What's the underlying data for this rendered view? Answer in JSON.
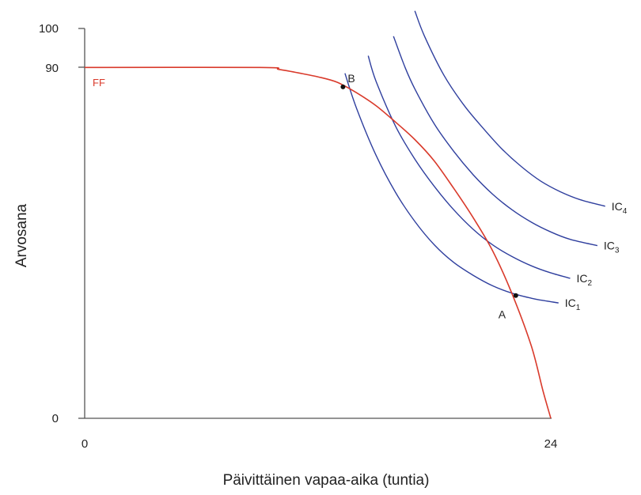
{
  "chart_data": {
    "type": "line",
    "xlabel": "Päivittäinen vapaa-aika (tuntia)",
    "ylabel": "Arvosana",
    "xlim": [
      0,
      24
    ],
    "ylim": [
      0,
      100
    ],
    "x_ticks": [
      "0",
      "24"
    ],
    "y_ticks": [
      "0",
      "90",
      "100"
    ],
    "frontier": {
      "name": "FF",
      "color": "#d93a2b",
      "points": [
        [
          0,
          90
        ],
        [
          9,
          90
        ],
        [
          10,
          89.5
        ],
        [
          11,
          88.6
        ],
        [
          12,
          87.6
        ],
        [
          13,
          86.2
        ],
        [
          14,
          83.5
        ],
        [
          15,
          80.2
        ],
        [
          16,
          76
        ],
        [
          17,
          71.5
        ],
        [
          18,
          66
        ],
        [
          19,
          59
        ],
        [
          20,
          51.5
        ],
        [
          21,
          43
        ],
        [
          22,
          32
        ],
        [
          23,
          18.5
        ],
        [
          23.6,
          7
        ],
        [
          24,
          0
        ]
      ]
    },
    "indifference_curves": [
      {
        "name": "IC",
        "sub": "1",
        "color": "#2f3f9e",
        "points": [
          [
            13.4,
            88.5
          ],
          [
            14,
            79.5
          ],
          [
            15,
            67.5
          ],
          [
            16,
            58
          ],
          [
            17,
            50.5
          ],
          [
            18,
            44.5
          ],
          [
            19,
            40
          ],
          [
            20,
            36.7
          ],
          [
            21,
            34
          ],
          [
            22,
            32.1
          ],
          [
            23,
            30.8
          ],
          [
            23.5,
            30.3
          ],
          [
            24.4,
            29.6
          ]
        ]
      },
      {
        "name": "IC",
        "sub": "2",
        "color": "#2f3f9e",
        "points": [
          [
            14.6,
            93
          ],
          [
            15,
            86.5
          ],
          [
            16,
            75
          ],
          [
            17,
            66.5
          ],
          [
            18,
            59.5
          ],
          [
            19,
            53.5
          ],
          [
            20,
            48.5
          ],
          [
            21,
            44.5
          ],
          [
            22,
            41.5
          ],
          [
            23,
            39.1
          ],
          [
            24,
            37.3
          ],
          [
            25,
            35.9
          ]
        ]
      },
      {
        "name": "IC",
        "sub": "3",
        "color": "#2f3f9e",
        "points": [
          [
            15.9,
            98
          ],
          [
            16.5,
            90
          ],
          [
            17,
            84.5
          ],
          [
            18,
            75.5
          ],
          [
            19,
            68.5
          ],
          [
            20,
            62.5
          ],
          [
            21,
            57.5
          ],
          [
            22,
            53.5
          ],
          [
            23,
            50.3
          ],
          [
            24,
            47.8
          ],
          [
            25,
            45.9
          ],
          [
            26.4,
            44.3
          ]
        ]
      },
      {
        "name": "IC",
        "sub": "4",
        "color": "#2f3f9e",
        "points": [
          [
            17,
            104.5
          ],
          [
            17.5,
            98
          ],
          [
            18.5,
            88
          ],
          [
            19.5,
            80.5
          ],
          [
            20.5,
            74.5
          ],
          [
            21.5,
            69
          ],
          [
            22.5,
            64.5
          ],
          [
            23.5,
            60.8
          ],
          [
            24.5,
            58.1
          ],
          [
            25.5,
            56.1
          ],
          [
            26.8,
            54.4
          ]
        ]
      }
    ],
    "points": [
      {
        "label": "A",
        "x": 22.2,
        "y": 31.5
      },
      {
        "label": "B",
        "x": 13.3,
        "y": 85
      }
    ],
    "colors": {
      "frontier": "#d93a2b",
      "curves": "#2f3f9e",
      "axis": "#555555"
    }
  }
}
